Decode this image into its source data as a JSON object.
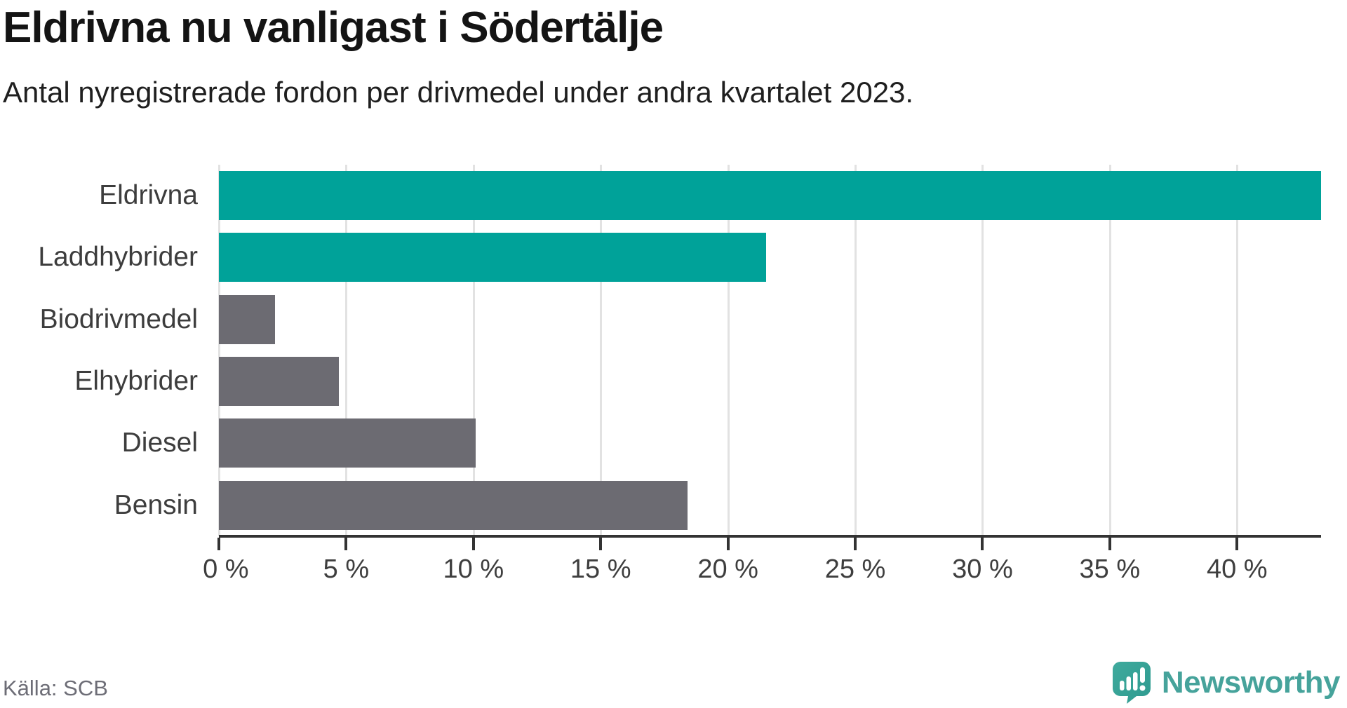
{
  "header": {
    "title": "Eldrivna nu vanligast i Södertälje",
    "subtitle": "Antal nyregistrerade fordon per drivmedel under andra kvartalet 2023."
  },
  "footer": {
    "source": "Källa: SCB",
    "brand": "Newsworthy"
  },
  "colors": {
    "highlight": "#00A299",
    "neutral": "#6C6B72",
    "axis": "#333333",
    "grid": "#E2E2E2",
    "logo_icon": "#35A296",
    "logo_text": "#46A39B"
  },
  "icons": {
    "logo": "newsworthy-speech-bubble-bar-chart-icon"
  },
  "chart_data": {
    "type": "bar",
    "orientation": "horizontal",
    "title": "Eldrivna nu vanligast i Södertälje",
    "subtitle": "Antal nyregistrerade fordon per drivmedel under andra kvartalet 2023.",
    "categories": [
      "Eldrivna",
      "Laddhybrider",
      "Biodrivmedel",
      "Elhybrider",
      "Diesel",
      "Bensin"
    ],
    "values": [
      43.3,
      21.5,
      2.2,
      4.7,
      10.1,
      18.4
    ],
    "unit": "%",
    "bar_colors": [
      "#00A299",
      "#00A299",
      "#6C6B72",
      "#6C6B72",
      "#6C6B72",
      "#6C6B72"
    ],
    "highlighted_categories": [
      "Eldrivna",
      "Laddhybrider"
    ],
    "xlim": [
      0,
      43.3
    ],
    "xticks": {
      "values": [
        0,
        5,
        10,
        15,
        20,
        25,
        30,
        35,
        40
      ],
      "labels": [
        "0 %",
        "5 %",
        "10 %",
        "15 %",
        "20 %",
        "25 %",
        "30 %",
        "35 %",
        "40 %"
      ]
    },
    "grid": "vertical",
    "legend": "none",
    "source": "Källa: SCB"
  }
}
